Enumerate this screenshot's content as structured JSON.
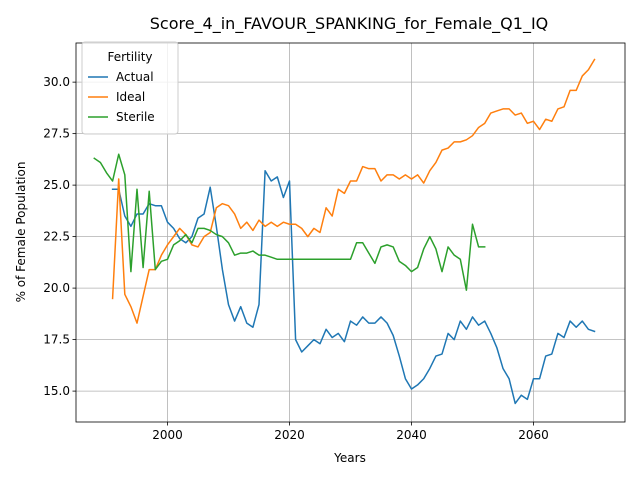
{
  "chart_data": {
    "type": "line",
    "title": "Score_4_in_FAVOUR_SPANKING_for_Female_Q1_IQ",
    "xlabel": "Years",
    "ylabel": "% of Female Population",
    "xlim": [
      1985,
      2075
    ],
    "ylim": [
      13.5,
      31.9
    ],
    "xticks": [
      2000,
      2020,
      2040,
      2060
    ],
    "yticks": [
      15.0,
      17.5,
      20.0,
      22.5,
      25.0,
      27.5,
      30.0
    ],
    "grid": true,
    "legend": {
      "title": "Fertility",
      "placement": "top-left"
    },
    "series": [
      {
        "name": "Actual",
        "color": "#1f77b4",
        "x": [
          1991,
          1992,
          1993,
          1994,
          1995,
          1996,
          1997,
          1998,
          1999,
          2000,
          2001,
          2002,
          2003,
          2004,
          2005,
          2006,
          2007,
          2008,
          2009,
          2010,
          2011,
          2012,
          2013,
          2014,
          2015,
          2016,
          2017,
          2018,
          2019,
          2020,
          2021,
          2022,
          2023,
          2024,
          2025,
          2026,
          2027,
          2028,
          2029,
          2030,
          2031,
          2032,
          2033,
          2034,
          2035,
          2036,
          2037,
          2038,
          2039,
          2040,
          2041,
          2042,
          2043,
          2044,
          2045,
          2046,
          2047,
          2048,
          2049,
          2050,
          2051,
          2052,
          2053,
          2054,
          2055,
          2056,
          2057,
          2058,
          2059,
          2060,
          2061,
          2062,
          2063,
          2064,
          2065,
          2066,
          2067,
          2068,
          2069,
          2070
        ],
        "y": [
          24.8,
          24.8,
          23.5,
          23.0,
          23.6,
          23.6,
          24.1,
          24.0,
          24.0,
          23.2,
          22.9,
          22.4,
          22.2,
          22.5,
          23.4,
          23.6,
          24.9,
          23.0,
          20.9,
          19.2,
          18.4,
          19.1,
          18.3,
          18.1,
          19.2,
          25.7,
          25.2,
          25.4,
          24.4,
          25.2,
          17.5,
          16.9,
          17.2,
          17.5,
          17.3,
          18.0,
          17.6,
          17.8,
          17.4,
          18.4,
          18.2,
          18.6,
          18.3,
          18.3,
          18.6,
          18.3,
          17.7,
          16.7,
          15.6,
          15.1,
          15.3,
          15.6,
          16.1,
          16.7,
          16.8,
          17.8,
          17.5,
          18.4,
          18.0,
          18.6,
          18.2,
          18.4,
          17.8,
          17.1,
          16.1,
          15.6,
          14.4,
          14.8,
          14.6,
          15.6,
          15.6,
          16.7,
          16.8,
          17.8,
          17.6,
          18.4,
          18.1,
          18.4,
          18.0,
          17.9
        ]
      },
      {
        "name": "Ideal",
        "color": "#ff7f0e",
        "x": [
          1991,
          1992,
          1993,
          1994,
          1995,
          1996,
          1997,
          1998,
          1999,
          2000,
          2001,
          2002,
          2003,
          2004,
          2005,
          2006,
          2007,
          2008,
          2009,
          2010,
          2011,
          2012,
          2013,
          2014,
          2015,
          2016,
          2017,
          2018,
          2019,
          2020,
          2021,
          2022,
          2023,
          2024,
          2025,
          2026,
          2027,
          2028,
          2029,
          2030,
          2031,
          2032,
          2033,
          2034,
          2035,
          2036,
          2037,
          2038,
          2039,
          2040,
          2041,
          2042,
          2043,
          2044,
          2045,
          2046,
          2047,
          2048,
          2049,
          2050,
          2051,
          2052,
          2053,
          2054,
          2055,
          2056,
          2057,
          2058,
          2059,
          2060,
          2061,
          2062,
          2063,
          2064,
          2065,
          2066,
          2067,
          2068,
          2069,
          2070
        ],
        "y": [
          19.5,
          25.3,
          19.7,
          19.1,
          18.3,
          19.6,
          20.9,
          20.9,
          21.6,
          22.1,
          22.5,
          22.9,
          22.6,
          22.1,
          22.0,
          22.5,
          22.7,
          23.9,
          24.1,
          24.0,
          23.6,
          22.9,
          23.2,
          22.8,
          23.3,
          23.0,
          23.2,
          23.0,
          23.2,
          23.1,
          23.1,
          22.9,
          22.5,
          22.9,
          22.7,
          23.9,
          23.5,
          24.8,
          24.6,
          25.2,
          25.2,
          25.9,
          25.8,
          25.8,
          25.2,
          25.5,
          25.5,
          25.3,
          25.5,
          25.3,
          25.5,
          25.1,
          25.7,
          26.1,
          26.7,
          26.8,
          27.1,
          27.1,
          27.2,
          27.4,
          27.8,
          28.0,
          28.5,
          28.6,
          28.7,
          28.7,
          28.4,
          28.5,
          28.0,
          28.1,
          27.7,
          28.2,
          28.1,
          28.7,
          28.8,
          29.6,
          29.6,
          30.3,
          30.6,
          31.1
        ]
      },
      {
        "name": "Sterile",
        "color": "#2ca02c",
        "x": [
          1988,
          1989,
          1990,
          1991,
          1992,
          1993,
          1994,
          1995,
          1996,
          1997,
          1998,
          1999,
          2000,
          2001,
          2002,
          2003,
          2004,
          2005,
          2006,
          2007,
          2008,
          2009,
          2010,
          2011,
          2012,
          2013,
          2014,
          2015,
          2016,
          2017,
          2018,
          2019,
          2020,
          2021,
          2022,
          2023,
          2024,
          2025,
          2026,
          2027,
          2028,
          2029,
          2030,
          2031,
          2032,
          2033,
          2034,
          2035,
          2036,
          2037,
          2038,
          2039,
          2040,
          2041,
          2042,
          2043,
          2044,
          2045,
          2046,
          2047,
          2048,
          2049,
          2050,
          2051,
          2052
        ],
        "y": [
          26.3,
          26.1,
          25.6,
          25.2,
          26.5,
          25.5,
          20.8,
          24.8,
          21.0,
          24.7,
          20.9,
          21.3,
          21.4,
          22.1,
          22.3,
          22.6,
          22.2,
          22.9,
          22.9,
          22.8,
          22.6,
          22.5,
          22.2,
          21.6,
          21.7,
          21.7,
          21.8,
          21.6,
          21.6,
          21.5,
          21.4,
          21.4,
          21.4,
          21.4,
          21.4,
          21.4,
          21.4,
          21.4,
          21.4,
          21.4,
          21.4,
          21.4,
          21.4,
          22.2,
          22.2,
          21.7,
          21.2,
          22.0,
          22.1,
          22.0,
          21.3,
          21.1,
          20.8,
          21.0,
          21.9,
          22.5,
          21.9,
          20.8,
          22.0,
          21.6,
          21.4,
          19.9,
          23.1,
          22.0,
          22.0
        ]
      }
    ]
  }
}
